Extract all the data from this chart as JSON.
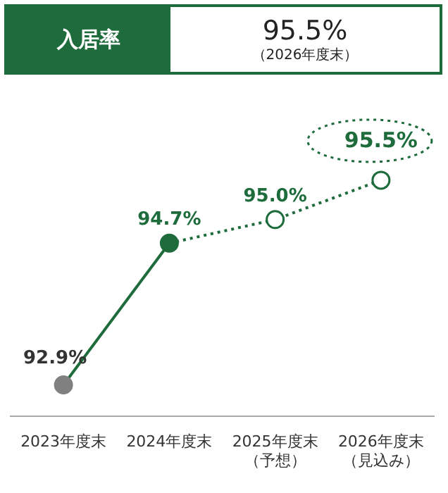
{
  "chart_data": {
    "type": "line",
    "title": "入居率",
    "subtitle": "95.5%",
    "annotations": [
      "（2026年度末）"
    ],
    "categories": [
      "2023年度末",
      "2024年度末",
      "2025年度末（予想）",
      "2026年度末（見込み）"
    ],
    "series": [
      {
        "type": "line",
        "color": "#1e6b3c",
        "colors": [
          "#808080",
          "#1e6b3c",
          "#1e6b3c",
          "#1e6b3c"
        ],
        "values": [
          92.9,
          94.7,
          null,
          null
        ],
        "value_labels": [
          "92.9%",
          "94.7%",
          null,
          null
        ],
        "line_style": "solid",
        "marker": "circle"
      },
      {
        "type": "line",
        "color": "#1e6b3c",
        "values": [
          null,
          94.7,
          95.0,
          95.5
        ],
        "value_labels": [
          null,
          null,
          "95.0%",
          "95.5%"
        ],
        "line_style": "dotted",
        "marker": "circle"
      }
    ],
    "grid": false,
    "legend": false
  }
}
